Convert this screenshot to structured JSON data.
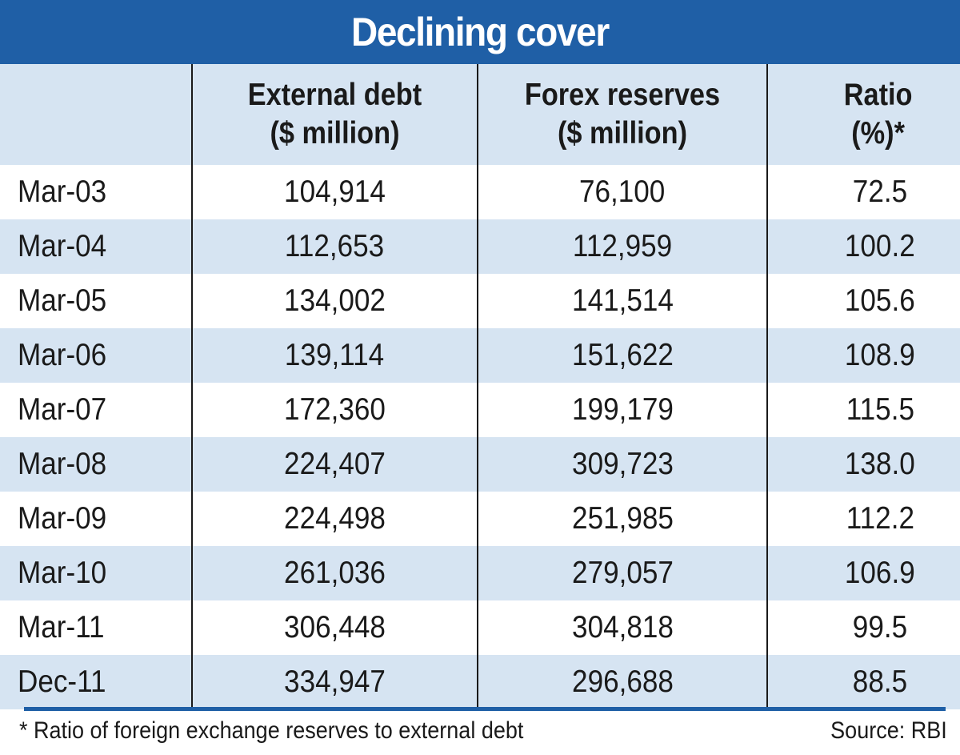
{
  "title": "Declining cover",
  "colors": {
    "header_bar": "#1f5fa6",
    "band": "#d6e4f2",
    "rule": "#1f5fa6"
  },
  "chart_data": {
    "type": "table",
    "title": "Declining cover",
    "columns": [
      {
        "line1": "",
        "line2": ""
      },
      {
        "line1": "External debt",
        "line2": "($ million)"
      },
      {
        "line1": "Forex reserves",
        "line2": "($ million)"
      },
      {
        "line1": "Ratio",
        "line2": "(%)*"
      }
    ],
    "rows": [
      [
        "Mar-03",
        "104,914",
        "76,100",
        "72.5"
      ],
      [
        "Mar-04",
        "112,653",
        "112,959",
        "100.2"
      ],
      [
        "Mar-05",
        "134,002",
        "141,514",
        "105.6"
      ],
      [
        "Mar-06",
        "139,114",
        "151,622",
        "108.9"
      ],
      [
        "Mar-07",
        "172,360",
        "199,179",
        "115.5"
      ],
      [
        "Mar-08",
        "224,407",
        "309,723",
        "138.0"
      ],
      [
        "Mar-09",
        "224,498",
        "251,985",
        "112.2"
      ],
      [
        "Mar-10",
        "261,036",
        "279,057",
        "106.9"
      ],
      [
        "Mar-11",
        "306,448",
        "304,818",
        "99.5"
      ],
      [
        "Dec-11",
        "334,947",
        "296,688",
        "88.5"
      ]
    ]
  },
  "footnote": "* Ratio of foreign exchange reserves to external debt",
  "source": "Source: RBI"
}
